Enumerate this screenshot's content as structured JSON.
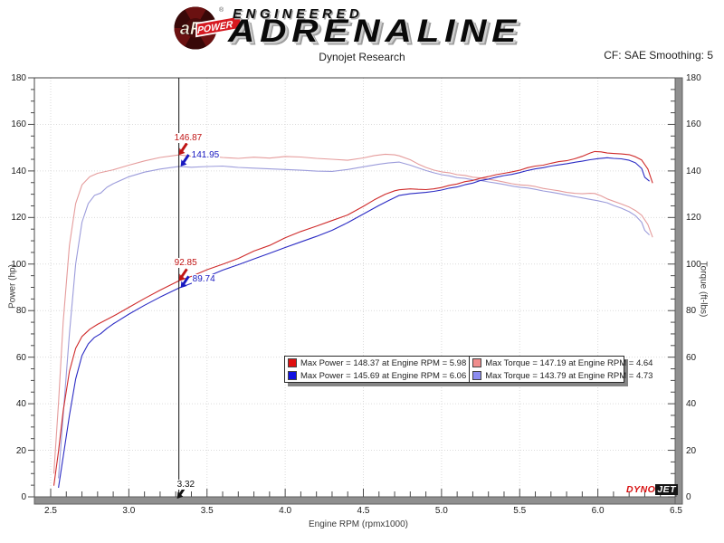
{
  "header": {
    "brand": {
      "afe": "aFe",
      "power": "POWER",
      "reg": "®",
      "line1": "ENGINEERED",
      "line2": "ADRENALINE"
    },
    "subtitle": "Dynojet Research",
    "smoothing": "CF: SAE Smoothing: 5"
  },
  "watermark": {
    "part1": "DYNO",
    "part2": "JET"
  },
  "legend": {
    "items": [
      {
        "swatch": "#e01010",
        "label": "Max Power = 148.37 at Engine RPM = 5.98"
      },
      {
        "swatch": "#f08d8d",
        "label": "Max Torque = 147.19 at Engine RPM = 4.64"
      },
      {
        "swatch": "#1010e0",
        "label": "Max Power = 145.69 at Engine RPM = 6.06"
      },
      {
        "swatch": "#8d8df0",
        "label": "Max Torque = 143.79 at Engine RPM = 4.73"
      }
    ]
  },
  "chart_data": {
    "type": "line",
    "title": "Dynojet Research",
    "xlabel": "Engine RPM (rpmx1000)",
    "ylabel_left": "Power (hp)",
    "ylabel_right": "Torque (ft-lbs)",
    "x_range": [
      2.5,
      6.5
    ],
    "y_range": [
      0,
      180
    ],
    "x_major_step": 0.5,
    "x_minor_step": 0.1,
    "y_major_step": 20,
    "y_minor_step": 5,
    "x_tick_labels": [
      "2.5",
      "3.0",
      "3.5",
      "4.0",
      "4.5",
      "5.0",
      "5.5",
      "6.0",
      "6.5"
    ],
    "y_tick_labels": [
      "0",
      "20",
      "40",
      "60",
      "80",
      "100",
      "120",
      "140",
      "160",
      "180"
    ],
    "grid": true,
    "legend_position": "bottom-center-inside",
    "cursor": {
      "rpm": 3.32,
      "label": "3.32",
      "readouts": [
        {
          "series": "torque_run1",
          "label": "146.87",
          "value": 146.87,
          "color": "#c01414"
        },
        {
          "series": "torque_run2",
          "label": "141.95",
          "value": 141.95,
          "color": "#1818c0"
        },
        {
          "series": "power_run1",
          "label": "92.85",
          "value": 92.85,
          "color": "#c01414"
        },
        {
          "series": "power_run2",
          "label": "89.74",
          "value": 89.74,
          "color": "#1818c0"
        }
      ]
    },
    "series": [
      {
        "id": "torque_run1",
        "name": "Max Torque = 147.19 at Engine RPM = 4.64",
        "axis": "right",
        "color": "#e59c9c",
        "max": {
          "value": 147.19,
          "rpm": 4.64
        },
        "points": [
          [
            2.52,
            10
          ],
          [
            2.55,
            40
          ],
          [
            2.58,
            75
          ],
          [
            2.62,
            108
          ],
          [
            2.66,
            126
          ],
          [
            2.7,
            134
          ],
          [
            2.75,
            137.5
          ],
          [
            2.8,
            139
          ],
          [
            2.9,
            140.5
          ],
          [
            3.0,
            142.5
          ],
          [
            3.1,
            144.3
          ],
          [
            3.2,
            145.8
          ],
          [
            3.32,
            146.87
          ],
          [
            3.4,
            146.3
          ],
          [
            3.5,
            146.4
          ],
          [
            3.6,
            145.8
          ],
          [
            3.7,
            145.4
          ],
          [
            3.8,
            145.9
          ],
          [
            3.9,
            145.5
          ],
          [
            4.0,
            146.2
          ],
          [
            4.1,
            146.0
          ],
          [
            4.2,
            145.4
          ],
          [
            4.3,
            145.0
          ],
          [
            4.4,
            144.6
          ],
          [
            4.5,
            145.6
          ],
          [
            4.57,
            146.6
          ],
          [
            4.64,
            147.19
          ],
          [
            4.7,
            146.9
          ],
          [
            4.73,
            146.5
          ],
          [
            4.8,
            144.8
          ],
          [
            4.85,
            143.0
          ],
          [
            4.9,
            141.5
          ],
          [
            4.95,
            140.4
          ],
          [
            5.0,
            139.6
          ],
          [
            5.05,
            139.2
          ],
          [
            5.1,
            138.4
          ],
          [
            5.15,
            138.1
          ],
          [
            5.2,
            137.3
          ],
          [
            5.25,
            137.0
          ],
          [
            5.3,
            136.4
          ],
          [
            5.35,
            135.9
          ],
          [
            5.4,
            135.2
          ],
          [
            5.45,
            134.5
          ],
          [
            5.5,
            134.0
          ],
          [
            5.55,
            133.8
          ],
          [
            5.6,
            133.3
          ],
          [
            5.65,
            132.5
          ],
          [
            5.7,
            132.0
          ],
          [
            5.75,
            131.5
          ],
          [
            5.8,
            130.8
          ],
          [
            5.85,
            130.4
          ],
          [
            5.9,
            130.2
          ],
          [
            5.95,
            130.4
          ],
          [
            5.98,
            130.3
          ],
          [
            6.02,
            129.3
          ],
          [
            6.06,
            128.0
          ],
          [
            6.1,
            127.0
          ],
          [
            6.15,
            125.8
          ],
          [
            6.2,
            124.5
          ],
          [
            6.24,
            123.0
          ],
          [
            6.28,
            121.0
          ],
          [
            6.32,
            117.0
          ],
          [
            6.35,
            111.5
          ]
        ]
      },
      {
        "id": "torque_run2",
        "name": "Max Torque = 143.79 at Engine RPM = 4.73",
        "axis": "right",
        "color": "#9c9cdb",
        "max": {
          "value": 143.79,
          "rpm": 4.73
        },
        "points": [
          [
            2.55,
            8
          ],
          [
            2.58,
            35
          ],
          [
            2.62,
            70
          ],
          [
            2.66,
            100
          ],
          [
            2.7,
            118
          ],
          [
            2.74,
            126
          ],
          [
            2.78,
            129.5
          ],
          [
            2.82,
            130.5
          ],
          [
            2.86,
            133
          ],
          [
            2.9,
            134.5
          ],
          [
            3.0,
            137.5
          ],
          [
            3.1,
            139.5
          ],
          [
            3.2,
            140.8
          ],
          [
            3.32,
            141.95
          ],
          [
            3.4,
            141.6
          ],
          [
            3.5,
            141.9
          ],
          [
            3.6,
            142.1
          ],
          [
            3.7,
            141.5
          ],
          [
            3.8,
            141.2
          ],
          [
            3.9,
            140.9
          ],
          [
            4.0,
            140.6
          ],
          [
            4.1,
            140.3
          ],
          [
            4.2,
            139.9
          ],
          [
            4.3,
            139.8
          ],
          [
            4.4,
            140.6
          ],
          [
            4.5,
            141.8
          ],
          [
            4.6,
            142.9
          ],
          [
            4.66,
            143.4
          ],
          [
            4.73,
            143.79
          ],
          [
            4.8,
            142.5
          ],
          [
            4.85,
            141.3
          ],
          [
            4.9,
            140.2
          ],
          [
            4.95,
            139.2
          ],
          [
            5.0,
            138.4
          ],
          [
            5.05,
            137.9
          ],
          [
            5.1,
            137.1
          ],
          [
            5.15,
            136.8
          ],
          [
            5.2,
            136.2
          ],
          [
            5.25,
            135.9
          ],
          [
            5.3,
            135.3
          ],
          [
            5.35,
            134.8
          ],
          [
            5.4,
            134.2
          ],
          [
            5.45,
            133.5
          ],
          [
            5.5,
            133.0
          ],
          [
            5.55,
            132.7
          ],
          [
            5.6,
            132.1
          ],
          [
            5.65,
            131.4
          ],
          [
            5.7,
            130.9
          ],
          [
            5.75,
            130.3
          ],
          [
            5.8,
            129.6
          ],
          [
            5.85,
            129.0
          ],
          [
            5.9,
            128.4
          ],
          [
            5.95,
            127.8
          ],
          [
            6.0,
            127.2
          ],
          [
            6.06,
            126.3
          ],
          [
            6.1,
            125.2
          ],
          [
            6.15,
            124.0
          ],
          [
            6.2,
            122.5
          ],
          [
            6.24,
            120.8
          ],
          [
            6.28,
            118.0
          ],
          [
            6.3,
            114.5
          ],
          [
            6.33,
            112.5
          ]
        ]
      },
      {
        "id": "power_run1",
        "name": "Max Power = 148.37 at Engine RPM = 5.98",
        "axis": "left",
        "color": "#cf2b2b",
        "max": {
          "value": 148.37,
          "rpm": 5.98
        },
        "points": [
          [
            2.52,
            4.8
          ],
          [
            2.55,
            19.4
          ],
          [
            2.58,
            36.8
          ],
          [
            2.62,
            53.9
          ],
          [
            2.66,
            63.8
          ],
          [
            2.7,
            68.9
          ],
          [
            2.75,
            72.0
          ],
          [
            2.8,
            74.1
          ],
          [
            2.9,
            77.6
          ],
          [
            3.0,
            81.4
          ],
          [
            3.1,
            85.2
          ],
          [
            3.2,
            88.8
          ],
          [
            3.32,
            92.85
          ],
          [
            3.4,
            94.7
          ],
          [
            3.5,
            97.6
          ],
          [
            3.6,
            99.9
          ],
          [
            3.7,
            102.4
          ],
          [
            3.8,
            105.6
          ],
          [
            3.9,
            108.0
          ],
          [
            4.0,
            111.3
          ],
          [
            4.1,
            114.0
          ],
          [
            4.2,
            116.3
          ],
          [
            4.3,
            118.7
          ],
          [
            4.4,
            121.1
          ],
          [
            4.5,
            124.8
          ],
          [
            4.57,
            127.6
          ],
          [
            4.64,
            130.0
          ],
          [
            4.7,
            131.5
          ],
          [
            4.73,
            131.9
          ],
          [
            4.8,
            132.3
          ],
          [
            4.85,
            132.1
          ],
          [
            4.9,
            132.0
          ],
          [
            4.95,
            132.3
          ],
          [
            5.0,
            132.9
          ],
          [
            5.05,
            133.8
          ],
          [
            5.1,
            134.4
          ],
          [
            5.15,
            135.4
          ],
          [
            5.2,
            135.9
          ],
          [
            5.25,
            136.9
          ],
          [
            5.3,
            137.6
          ],
          [
            5.35,
            138.4
          ],
          [
            5.4,
            139.0
          ],
          [
            5.45,
            139.6
          ],
          [
            5.5,
            140.3
          ],
          [
            5.55,
            141.4
          ],
          [
            5.6,
            142.1
          ],
          [
            5.65,
            142.5
          ],
          [
            5.7,
            143.3
          ],
          [
            5.75,
            144.0
          ],
          [
            5.8,
            144.4
          ],
          [
            5.85,
            145.2
          ],
          [
            5.9,
            146.3
          ],
          [
            5.95,
            147.7
          ],
          [
            5.98,
            148.37
          ],
          [
            6.02,
            148.2
          ],
          [
            6.06,
            147.7
          ],
          [
            6.1,
            147.5
          ],
          [
            6.15,
            147.3
          ],
          [
            6.2,
            147.0
          ],
          [
            6.24,
            146.1
          ],
          [
            6.28,
            144.7
          ],
          [
            6.32,
            140.8
          ],
          [
            6.35,
            134.8
          ]
        ]
      },
      {
        "id": "power_run2",
        "name": "Max Power = 145.69 at Engine RPM = 6.06",
        "axis": "left",
        "color": "#2b2bc4",
        "max": {
          "value": 145.69,
          "rpm": 6.06
        },
        "points": [
          [
            2.55,
            3.9
          ],
          [
            2.58,
            17.2
          ],
          [
            2.62,
            34.9
          ],
          [
            2.66,
            50.6
          ],
          [
            2.7,
            60.7
          ],
          [
            2.74,
            65.7
          ],
          [
            2.78,
            68.5
          ],
          [
            2.82,
            70.1
          ],
          [
            2.86,
            72.4
          ],
          [
            2.9,
            74.3
          ],
          [
            3.0,
            78.5
          ],
          [
            3.1,
            82.3
          ],
          [
            3.2,
            85.8
          ],
          [
            3.32,
            89.74
          ],
          [
            3.4,
            91.7
          ],
          [
            3.5,
            94.6
          ],
          [
            3.6,
            97.4
          ],
          [
            3.7,
            99.7
          ],
          [
            3.8,
            102.2
          ],
          [
            3.9,
            104.6
          ],
          [
            4.0,
            107.1
          ],
          [
            4.1,
            109.5
          ],
          [
            4.2,
            111.9
          ],
          [
            4.3,
            114.5
          ],
          [
            4.4,
            117.8
          ],
          [
            4.5,
            121.5
          ],
          [
            4.6,
            125.2
          ],
          [
            4.66,
            127.2
          ],
          [
            4.73,
            129.5
          ],
          [
            4.8,
            130.2
          ],
          [
            4.85,
            130.5
          ],
          [
            4.9,
            130.8
          ],
          [
            4.95,
            131.2
          ],
          [
            5.0,
            131.8
          ],
          [
            5.05,
            132.6
          ],
          [
            5.1,
            133.1
          ],
          [
            5.15,
            134.1
          ],
          [
            5.2,
            134.8
          ],
          [
            5.25,
            135.9
          ],
          [
            5.3,
            136.5
          ],
          [
            5.35,
            137.3
          ],
          [
            5.4,
            138.0
          ],
          [
            5.45,
            138.5
          ],
          [
            5.5,
            139.3
          ],
          [
            5.55,
            140.2
          ],
          [
            5.6,
            140.9
          ],
          [
            5.65,
            141.4
          ],
          [
            5.7,
            142.1
          ],
          [
            5.75,
            142.6
          ],
          [
            5.8,
            143.1
          ],
          [
            5.85,
            143.7
          ],
          [
            5.9,
            144.2
          ],
          [
            5.95,
            144.8
          ],
          [
            6.0,
            145.3
          ],
          [
            6.06,
            145.69
          ],
          [
            6.1,
            145.4
          ],
          [
            6.15,
            145.2
          ],
          [
            6.2,
            144.6
          ],
          [
            6.24,
            143.5
          ],
          [
            6.28,
            141.1
          ],
          [
            6.3,
            137.3
          ],
          [
            6.33,
            135.6
          ]
        ]
      }
    ]
  }
}
